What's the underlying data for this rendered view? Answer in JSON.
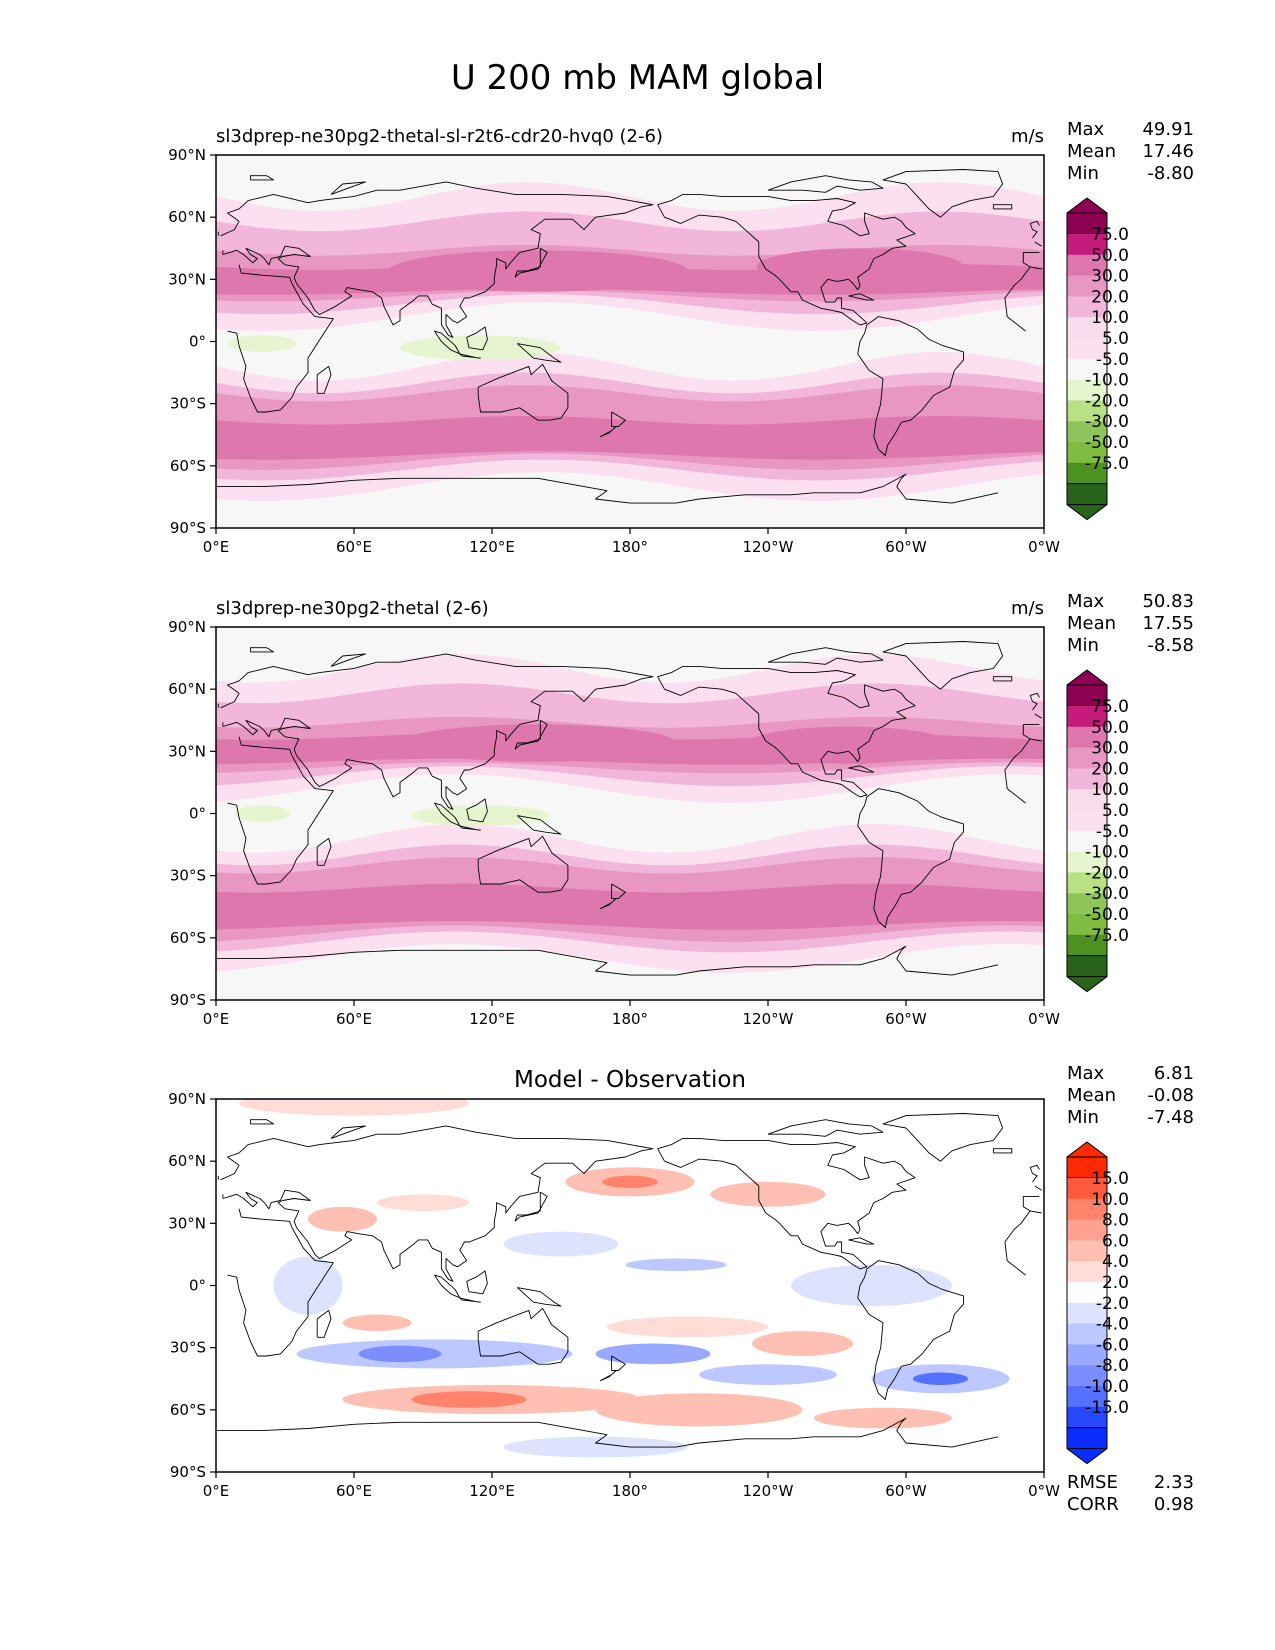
{
  "title": "U 200 mb MAM global",
  "lat_ticks": [
    "90°N",
    "60°N",
    "30°N",
    "0°",
    "30°S",
    "60°S",
    "90°S"
  ],
  "lon_ticks": [
    "0°E",
    "60°E",
    "120°E",
    "180°",
    "120°W",
    "60°W",
    "0°W"
  ],
  "panels": [
    {
      "name": "model",
      "title_left": "sl3dprep-ne30pg2-thetal-sl-r2t6-cdr20-hvq0 (2-6)",
      "title_center": "",
      "units": "m/s",
      "stats": {
        "Max": "49.91",
        "Mean": "17.46",
        "Min": "-8.80"
      },
      "colorbar": {
        "labels": [
          "75.0",
          "50.0",
          "30.0",
          "20.0",
          "10.0",
          "5.0",
          "-5.0",
          "-10.0",
          "-20.0",
          "-30.0",
          "-50.0",
          "-75.0"
        ],
        "colors": [
          "#8e0152",
          "#c51b7d",
          "#de77ae",
          "#e897c3",
          "#f1b6da",
          "#f8dcec",
          "#fde0ef",
          "#f7f7f7",
          "#e6f5d0",
          "#b8e186",
          "#8fc65c",
          "#7fbc41",
          "#4d9221",
          "#276419"
        ]
      },
      "fields": {
        "background": "#f7f7f7",
        "bands": [
          {
            "lat": [
              12,
              70
            ],
            "color": "#fde0ef"
          },
          {
            "lat": [
              18,
              58
            ],
            "color": "#f1b6da"
          },
          {
            "lat": [
              22,
              44
            ],
            "color": "#e897c3"
          },
          {
            "lat": [
              24,
              36
            ],
            "color": "#de77ae"
          },
          {
            "lat": [
              -70,
              -12
            ],
            "color": "#fde0ef"
          },
          {
            "lat": [
              -62,
              -20
            ],
            "color": "#f1b6da"
          },
          {
            "lat": [
              -58,
              -25
            ],
            "color": "#e897c3"
          },
          {
            "lat": [
              -55,
              -38
            ],
            "color": "#de77ae"
          }
        ],
        "blobs": [
          {
            "lon": 140,
            "lat": 34,
            "rlon": 65,
            "rlat": 10,
            "color": "#de77ae"
          },
          {
            "lon": 280,
            "lat": 36,
            "rlon": 45,
            "rlat": 9,
            "color": "#de77ae"
          },
          {
            "lon": 115,
            "lat": -3,
            "rlon": 35,
            "rlat": 6,
            "color": "#e6f5d0"
          },
          {
            "lon": 20,
            "lat": -1,
            "rlon": 15,
            "rlat": 4,
            "color": "#e6f5d0"
          }
        ]
      },
      "extra": {}
    },
    {
      "name": "observation",
      "title_left": "sl3dprep-ne30pg2-thetal (2-6)",
      "title_center": "",
      "units": "m/s",
      "stats": {
        "Max": "50.83",
        "Mean": "17.55",
        "Min": "-8.58"
      },
      "colorbar": {
        "labels": [
          "75.0",
          "50.0",
          "30.0",
          "20.0",
          "10.0",
          "5.0",
          "-5.0",
          "-10.0",
          "-20.0",
          "-30.0",
          "-50.0",
          "-75.0"
        ],
        "colors": [
          "#8e0152",
          "#c51b7d",
          "#de77ae",
          "#e897c3",
          "#f1b6da",
          "#f8dcec",
          "#fde0ef",
          "#f7f7f7",
          "#e6f5d0",
          "#b8e186",
          "#8fc65c",
          "#7fbc41",
          "#4d9221",
          "#276419"
        ]
      },
      "fields": {
        "background": "#f7f7f7",
        "bands": [
          {
            "lat": [
              12,
              70
            ],
            "color": "#fde0ef"
          },
          {
            "lat": [
              18,
              58
            ],
            "color": "#f1b6da"
          },
          {
            "lat": [
              22,
              44
            ],
            "color": "#e897c3"
          },
          {
            "lat": [
              25,
              37
            ],
            "color": "#de77ae"
          },
          {
            "lat": [
              -70,
              -12
            ],
            "color": "#fde0ef"
          },
          {
            "lat": [
              -62,
              -20
            ],
            "color": "#f1b6da"
          },
          {
            "lat": [
              -58,
              -25
            ],
            "color": "#e897c3"
          },
          {
            "lat": [
              -54,
              -36
            ],
            "color": "#de77ae"
          }
        ],
        "blobs": [
          {
            "lon": 140,
            "lat": 34,
            "rlon": 60,
            "rlat": 9,
            "color": "#de77ae"
          },
          {
            "lon": 275,
            "lat": 33,
            "rlon": 45,
            "rlat": 9,
            "color": "#de77ae"
          },
          {
            "lon": 115,
            "lat": -1,
            "rlon": 30,
            "rlat": 5,
            "color": "#e6f5d0"
          },
          {
            "lon": 20,
            "lat": 0,
            "rlon": 12,
            "rlat": 4,
            "color": "#e6f5d0"
          }
        ]
      },
      "extra": {}
    },
    {
      "name": "difference",
      "title_left": "",
      "title_center": "Model - Observation",
      "units": "",
      "stats": {
        "Max": "6.81",
        "Mean": "-0.08",
        "Min": "-7.48"
      },
      "colorbar": {
        "labels": [
          "15.0",
          "10.0",
          "8.0",
          "6.0",
          "4.0",
          "2.0",
          "-2.0",
          "-4.0",
          "-6.0",
          "-8.0",
          "-10.0",
          "-15.0"
        ],
        "colors": [
          "#ff2a00",
          "#ff5a3c",
          "#ff826a",
          "#ffa090",
          "#ffbfb2",
          "#ffdcd5",
          "#ffffff",
          "#dde3ff",
          "#bcc8ff",
          "#98a9ff",
          "#7a8eff",
          "#5472ff",
          "#2449ff",
          "#0a2cff"
        ]
      },
      "fields": {
        "background": "#ffffff",
        "bands": [],
        "blobs": [
          {
            "lon": 90,
            "lat": 40,
            "rlon": 20,
            "rlat": 4,
            "color": "#ffdcd5"
          },
          {
            "lon": 180,
            "lat": 50,
            "rlon": 28,
            "rlat": 7,
            "color": "#ffbfb2"
          },
          {
            "lon": 180,
            "lat": 50,
            "rlon": 12,
            "rlat": 3,
            "color": "#ff826a"
          },
          {
            "lon": 240,
            "lat": 44,
            "rlon": 25,
            "rlat": 6,
            "color": "#ffbfb2"
          },
          {
            "lon": 55,
            "lat": 32,
            "rlon": 15,
            "rlat": 6,
            "color": "#ffbfb2"
          },
          {
            "lon": 150,
            "lat": 20,
            "rlon": 25,
            "rlat": 6,
            "color": "#dde3ff"
          },
          {
            "lon": 200,
            "lat": 10,
            "rlon": 22,
            "rlat": 3,
            "color": "#bcc8ff"
          },
          {
            "lon": 285,
            "lat": 0,
            "rlon": 35,
            "rlat": 10,
            "color": "#dde3ff"
          },
          {
            "lon": 40,
            "lat": 0,
            "rlon": 15,
            "rlat": 14,
            "color": "#dde3ff"
          },
          {
            "lon": 70,
            "lat": -18,
            "rlon": 15,
            "rlat": 4,
            "color": "#ffbfb2"
          },
          {
            "lon": 205,
            "lat": -20,
            "rlon": 35,
            "rlat": 5,
            "color": "#ffdcd5"
          },
          {
            "lon": 255,
            "lat": -28,
            "rlon": 22,
            "rlat": 6,
            "color": "#ffbfb2"
          },
          {
            "lon": 95,
            "lat": -33,
            "rlon": 60,
            "rlat": 7,
            "color": "#bcc8ff"
          },
          {
            "lon": 80,
            "lat": -33,
            "rlon": 18,
            "rlat": 4,
            "color": "#7a8eff"
          },
          {
            "lon": 190,
            "lat": -33,
            "rlon": 25,
            "rlat": 5,
            "color": "#98a9ff"
          },
          {
            "lon": 315,
            "lat": -45,
            "rlon": 30,
            "rlat": 7,
            "color": "#bcc8ff"
          },
          {
            "lon": 315,
            "lat": -45,
            "rlon": 12,
            "rlat": 3,
            "color": "#5472ff"
          },
          {
            "lon": 240,
            "lat": -43,
            "rlon": 30,
            "rlat": 5,
            "color": "#bcc8ff"
          },
          {
            "lon": 120,
            "lat": -55,
            "rlon": 65,
            "rlat": 7,
            "color": "#ffbfb2"
          },
          {
            "lon": 110,
            "lat": -55,
            "rlon": 25,
            "rlat": 4,
            "color": "#ff826a"
          },
          {
            "lon": 210,
            "lat": -60,
            "rlon": 45,
            "rlat": 8,
            "color": "#ffbfb2"
          },
          {
            "lon": 290,
            "lat": -64,
            "rlon": 30,
            "rlat": 5,
            "color": "#ffbfb2"
          },
          {
            "lon": 165,
            "lat": -78,
            "rlon": 40,
            "rlat": 5,
            "color": "#dde3ff"
          },
          {
            "lon": 60,
            "lat": 88,
            "rlon": 50,
            "rlat": 6,
            "color": "#ffdcd5"
          }
        ]
      },
      "extra": {
        "RMSE": "2.33",
        "CORR": "0.98"
      }
    }
  ]
}
